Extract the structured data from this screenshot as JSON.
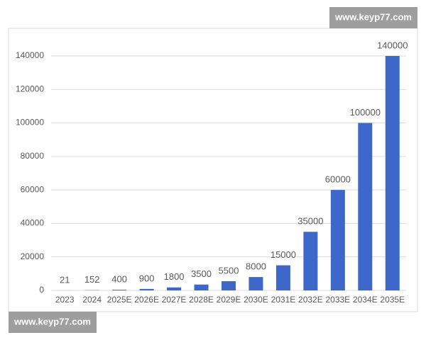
{
  "chart_data": {
    "type": "bar",
    "categories": [
      "2023",
      "2024",
      "2025E",
      "2026E",
      "2027E",
      "2028E",
      "2029E",
      "2030E",
      "2031E",
      "2032E",
      "2033E",
      "2034E",
      "2035E"
    ],
    "values": [
      21,
      152,
      400,
      900,
      1800,
      3500,
      5500,
      8000,
      15000,
      35000,
      60000,
      100000,
      140000
    ],
    "color": "#3d68c9",
    "ylim": [
      0,
      140000
    ],
    "yticks": [
      0,
      20000,
      40000,
      60000,
      80000,
      100000,
      120000,
      140000
    ],
    "grid": true
  },
  "watermarks": [
    "www.keyp77.com",
    "www.keyp77.com"
  ]
}
